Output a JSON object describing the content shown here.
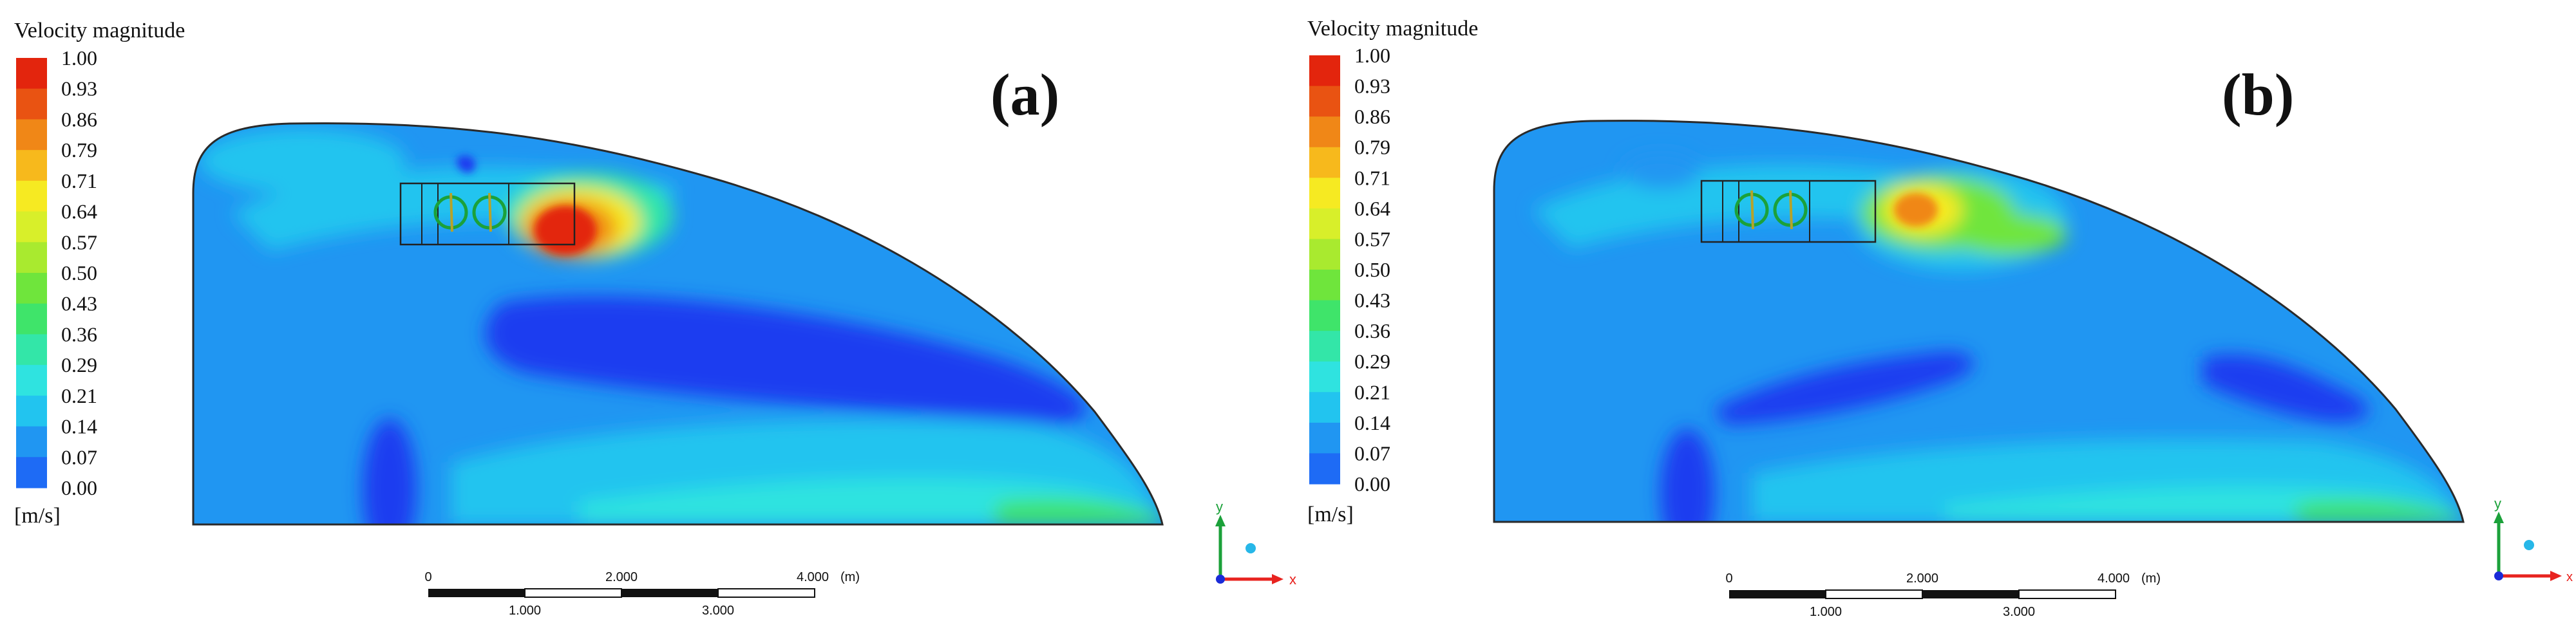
{
  "panels": [
    {
      "id": "a",
      "label": "(a)",
      "legend_title": "Velocity magnitude",
      "unit": "[m/s]",
      "ticks": [
        "1.00",
        "0.93",
        "0.86",
        "0.79",
        "0.71",
        "0.64",
        "0.57",
        "0.50",
        "0.43",
        "0.36",
        "0.29",
        "0.21",
        "0.14",
        "0.07",
        "0.00"
      ],
      "scale": {
        "major": [
          "0",
          "2.000",
          "4.000"
        ],
        "minor": [
          "1.000",
          "3.000"
        ],
        "unit": "(m)"
      },
      "axes": {
        "y": "y",
        "x": "x"
      }
    },
    {
      "id": "b",
      "label": "(b)",
      "legend_title": "Velocity magnitude",
      "unit": "[m/s]",
      "ticks": [
        "1.00",
        "0.93",
        "0.86",
        "0.79",
        "0.71",
        "0.64",
        "0.57",
        "0.50",
        "0.43",
        "0.36",
        "0.29",
        "0.21",
        "0.14",
        "0.07",
        "0.00"
      ],
      "scale": {
        "major": [
          "0",
          "2.000",
          "4.000"
        ],
        "minor": [
          "1.000",
          "3.000"
        ],
        "unit": "(m)"
      },
      "axes": {
        "y": "y",
        "x": "x"
      }
    }
  ],
  "colors": {
    "band": [
      "#1b3ef0",
      "#1e6bf5",
      "#2096f2",
      "#22c4ef",
      "#2fe3e0",
      "#33e6a8",
      "#3fe46a",
      "#6fe53c",
      "#a9ea2f",
      "#d8ef2a",
      "#f6ea22",
      "#f7b91c",
      "#f08717",
      "#e95312",
      "#e3250d"
    ],
    "outline": "#2a2a2a",
    "axis_y": "#1ba13a",
    "axis_x": "#e8231f",
    "axis_dot": "#27b7e8"
  }
}
